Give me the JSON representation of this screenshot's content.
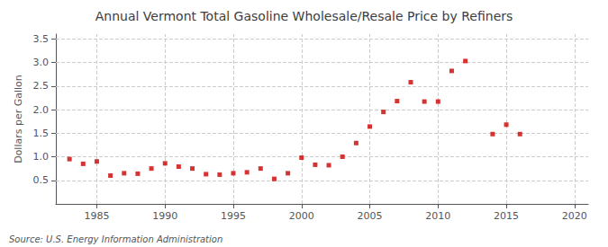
{
  "chart_data": {
    "type": "scatter",
    "title": "Annual Vermont Total Gasoline Wholesale/Resale Price by Refiners",
    "ylabel": "Dollars per Gallon",
    "annotation": "Source: U.S. Energy Information Administration",
    "x": [
      1983,
      1984,
      1985,
      1986,
      1987,
      1988,
      1989,
      1990,
      1991,
      1992,
      1993,
      1994,
      1995,
      1996,
      1997,
      1998,
      1999,
      2000,
      2001,
      2002,
      2003,
      2004,
      2005,
      2006,
      2007,
      2008,
      2009,
      2010,
      2011,
      2012,
      2014,
      2015,
      2016
    ],
    "values": [
      0.95,
      0.85,
      0.9,
      0.6,
      0.65,
      0.64,
      0.75,
      0.86,
      0.79,
      0.75,
      0.63,
      0.62,
      0.65,
      0.67,
      0.75,
      0.53,
      0.65,
      0.98,
      0.83,
      0.82,
      1.0,
      1.29,
      1.64,
      1.95,
      2.18,
      2.58,
      2.17,
      2.17,
      2.82,
      3.03,
      1.48,
      1.68,
      1.48
    ],
    "color": "#cc0000",
    "marker": "square",
    "xlim": [
      1982,
      2021
    ],
    "xticks": [
      1985,
      1990,
      1995,
      2000,
      2005,
      2010,
      2015,
      2020
    ],
    "ylim": [
      0.0,
      3.6
    ],
    "yticks": [
      0.5,
      {
        "value": 1.0,
        "label": "1.0"
      },
      1.5,
      {
        "value": 2.0,
        "label": "2.0"
      },
      2.5,
      {
        "value": 3.0,
        "label": "3.0"
      },
      3.5
    ],
    "grid": true
  }
}
